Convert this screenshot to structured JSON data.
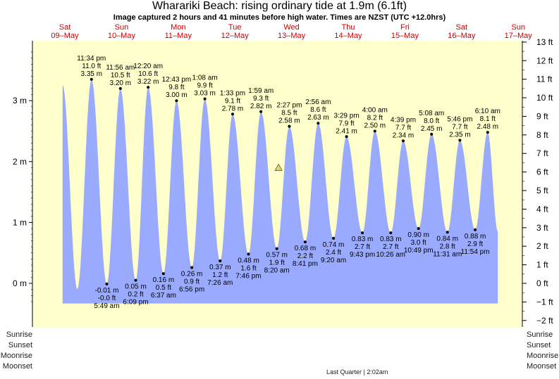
{
  "title": "Wharariki Beach: rising  ordinary tide at 1.9m (6.1ft)",
  "subtitle": "Image captured 2 hours and 41 minutes before high water. Times are NZST (UTC +12.0hrs)",
  "colors": {
    "background": "#ffffcc",
    "tide_fill": "#99aaff",
    "day_label": "#cc0000",
    "marker": "#e8d84a"
  },
  "days": [
    {
      "dow": "Sat",
      "date": "09–May"
    },
    {
      "dow": "Sun",
      "date": "10–May"
    },
    {
      "dow": "Mon",
      "date": "11–May"
    },
    {
      "dow": "Tue",
      "date": "12–May"
    },
    {
      "dow": "Wed",
      "date": "13–May"
    },
    {
      "dow": "Thu",
      "date": "14–May"
    },
    {
      "dow": "Fri",
      "date": "15–May"
    },
    {
      "dow": "Sat",
      "date": "16–May"
    },
    {
      "dow": "Sun",
      "date": "17–May"
    }
  ],
  "left_labels": [
    "Sunrise",
    "Sunset",
    "Moonrise",
    "Moonset"
  ],
  "right_labels": [
    "Sunrise",
    "Sunset",
    "Moonrise",
    "Moonset"
  ],
  "moon_phase": {
    "label": "Last Quarter",
    "time": "2:02am"
  },
  "chart_data": {
    "type": "area",
    "y_left_unit": "m",
    "y_right_unit": "ft",
    "ylim_m": [
      -0.33,
      3.96
    ],
    "xlim_days": [
      -0.14,
      7.97
    ],
    "y_ticks_m": [
      0,
      1,
      2,
      3
    ],
    "y_ticks_ft": [
      -2,
      -1,
      0,
      1,
      2,
      3,
      4,
      5,
      6,
      7,
      8,
      9,
      10,
      11,
      12,
      13
    ],
    "current": {
      "level_m": 1.9,
      "level_ft": 6.1
    },
    "highs": [
      {
        "day": 0.982,
        "m": 3.35,
        "ft": "11.0 ft",
        "time": "11:34 pm",
        "m_label": "3.35 m"
      },
      {
        "day": 1.997,
        "m": 3.2,
        "ft": "10.5 ft",
        "time": "11:56 am",
        "m_label": "3.20 m"
      },
      {
        "day": 2.014,
        "m": 3.22,
        "ft": "10.6 ft",
        "time": "12:20 am",
        "m_label": "3.22 m"
      },
      {
        "day": 3.03,
        "m": 3.0,
        "ft": "9.8 ft",
        "time": "12:43 pm",
        "m_label": "3.00 m"
      },
      {
        "day": 3.047,
        "m": 3.03,
        "ft": "9.9 ft",
        "time": "1:08 am",
        "m_label": "3.03 m"
      },
      {
        "day": 4.065,
        "m": 2.78,
        "ft": "9.1 ft",
        "time": "1:33 pm",
        "m_label": "2.78 m"
      },
      {
        "day": 4.083,
        "m": 2.82,
        "ft": "9.3 ft",
        "time": "1:59 am",
        "m_label": "2.82 m"
      },
      {
        "day": 5.102,
        "m": 2.58,
        "ft": "8.5 ft",
        "time": "2:27 pm",
        "m_label": "2.58 m"
      },
      {
        "day": 5.122,
        "m": 2.63,
        "ft": "8.6 ft",
        "time": "2:56 am",
        "m_label": "2.63 m"
      },
      {
        "day": 6.145,
        "m": 2.41,
        "ft": "7.9 ft",
        "time": "3:29 pm",
        "m_label": "2.41 m"
      },
      {
        "day": 6.167,
        "m": 2.5,
        "ft": "8.2 ft",
        "time": "4:00 am",
        "m_label": "2.50 m"
      },
      {
        "day": 7.194,
        "m": 2.34,
        "ft": "7.7 ft",
        "time": "4:39 pm",
        "m_label": "2.34 m"
      },
      {
        "day": 7.214,
        "m": 2.45,
        "ft": "8.0 ft",
        "time": "5:08 am",
        "m_label": "2.45 m"
      },
      {
        "day": 8.24,
        "m": 2.35,
        "ft": "7.7 ft",
        "time": "5:46 pm",
        "m_label": "2.35 m"
      },
      {
        "day": 8.257,
        "m": 2.48,
        "ft": "8.1 ft",
        "time": "6:10 am",
        "m_label": "2.48 m"
      }
    ],
    "lows": [
      {
        "day": 1.243,
        "m": -0.01,
        "ft": "-0.0 ft",
        "time": "5:49 am",
        "m_label": "-0.01 m"
      },
      {
        "day": 1.756,
        "m": 0.05,
        "ft": "0.2 ft",
        "time": "6:09 pm",
        "m_label": "0.05 m"
      },
      {
        "day": 2.275,
        "m": 0.16,
        "ft": "0.5 ft",
        "time": "6:37 am",
        "m_label": "0.16 m"
      },
      {
        "day": 2.789,
        "m": 0.26,
        "ft": "0.9 ft",
        "time": "6:56 pm",
        "m_label": "0.26 m"
      },
      {
        "day": 3.31,
        "m": 0.37,
        "ft": "1.2 ft",
        "time": "7:26 am",
        "m_label": "0.37 m"
      },
      {
        "day": 3.822,
        "m": 0.48,
        "ft": "1.6 ft",
        "time": "7:46 pm",
        "m_label": "0.48 m"
      },
      {
        "day": 4.347,
        "m": 0.57,
        "ft": "1.9 ft",
        "time": "8:20 am",
        "m_label": "0.57 m"
      },
      {
        "day": 4.862,
        "m": 0.68,
        "ft": "2.2 ft",
        "time": "8:41 pm",
        "m_label": "0.68 m"
      },
      {
        "day": 5.389,
        "m": 0.74,
        "ft": "2.4 ft",
        "time": "9:20 am",
        "m_label": "0.74 m"
      },
      {
        "day": 5.905,
        "m": 0.83,
        "ft": "2.7 ft",
        "time": "9:43 pm",
        "m_label": "0.83 m"
      },
      {
        "day": 6.435,
        "m": 0.83,
        "ft": "2.7 ft",
        "time": "10:26 am",
        "m_label": "0.83 m"
      },
      {
        "day": 6.951,
        "m": 0.9,
        "ft": "3.0 ft",
        "time": "10:49 pm",
        "m_label": "0.90 m"
      },
      {
        "day": 7.48,
        "m": 0.84,
        "ft": "2.8 ft",
        "time": "11:31 am",
        "m_label": "0.84 m"
      },
      {
        "day": 7.996,
        "m": 0.88,
        "ft": "2.9 ft",
        "time": "11:54 pm",
        "m_label": "0.88 m"
      }
    ]
  }
}
